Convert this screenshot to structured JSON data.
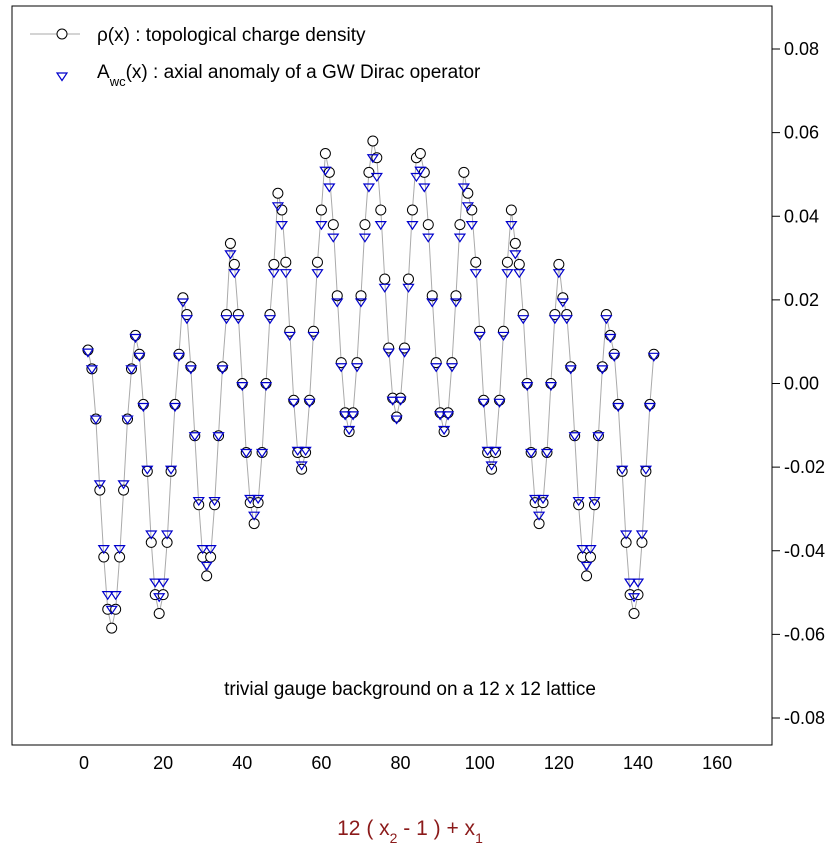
{
  "chart_data": {
    "type": "scatter",
    "title": "",
    "xlabel": {
      "parts": [
        {
          "text": "12 ( x",
          "sub": false
        },
        {
          "text": "2",
          "sub": true
        },
        {
          "text": " - 1 ) + x",
          "sub": false
        },
        {
          "text": "1",
          "sub": true
        }
      ],
      "color": "#8b1a1a"
    },
    "ylabel": "",
    "xlim": [
      -20,
      160
    ],
    "ylim": [
      -0.08,
      0.09
    ],
    "xticks": [
      0,
      20,
      40,
      60,
      80,
      100,
      120,
      140,
      160
    ],
    "yticks": [
      -0.08,
      -0.06,
      -0.04,
      -0.02,
      0.0,
      0.02,
      0.04,
      0.06,
      0.08
    ],
    "ytick_labels": [
      "-0.08",
      "-0.06",
      "-0.04",
      "-0.02",
      "0.00",
      "0.02",
      "0.04",
      "0.06",
      "0.08"
    ],
    "y_axis_side": "right",
    "grid": false,
    "legend_position": "top-left",
    "annotation": "trivial gauge background on a 12 x 12 lattice",
    "series": [
      {
        "label_parts": [
          {
            "text": "ρ(x) : topological charge density",
            "sub": false
          }
        ],
        "marker": "circle",
        "line": true,
        "color": "#000000",
        "line_color": "#aaaaaa",
        "values": [
          0.008,
          0.0035,
          -0.0085,
          -0.0255,
          -0.0415,
          -0.054,
          -0.0585,
          -0.054,
          -0.0415,
          -0.0255,
          -0.0085,
          0.0035,
          0.0115,
          0.007,
          -0.005,
          -0.021,
          -0.038,
          -0.0505,
          -0.055,
          -0.0505,
          -0.038,
          -0.021,
          -0.005,
          0.007,
          0.0205,
          0.0165,
          0.004,
          -0.0125,
          -0.029,
          -0.0415,
          -0.046,
          -0.0415,
          -0.029,
          -0.0125,
          0.004,
          0.0165,
          0.0335,
          0.0285,
          0.0165,
          0.0,
          -0.0165,
          -0.0285,
          -0.0335,
          -0.0285,
          -0.0165,
          0.0,
          0.0165,
          0.0285,
          0.0455,
          0.0415,
          0.029,
          0.0125,
          -0.004,
          -0.0165,
          -0.0205,
          -0.0165,
          -0.004,
          0.0125,
          0.029,
          0.0415,
          0.055,
          0.0505,
          0.038,
          0.021,
          0.005,
          -0.007,
          -0.0115,
          -0.007,
          0.005,
          0.021,
          0.038,
          0.0505,
          0.058,
          0.054,
          0.0415,
          0.025,
          0.0085,
          -0.0035,
          -0.008,
          -0.0035,
          0.0085,
          0.025,
          0.0415,
          0.054,
          0.055,
          0.0505,
          0.038,
          0.021,
          0.005,
          -0.007,
          -0.0115,
          -0.007,
          0.005,
          0.021,
          0.038,
          0.0505,
          0.0455,
          0.0415,
          0.029,
          0.0125,
          -0.004,
          -0.0165,
          -0.0205,
          -0.0165,
          -0.004,
          0.0125,
          0.029,
          0.0415,
          0.0335,
          0.0285,
          0.0165,
          0.0,
          -0.0165,
          -0.0285,
          -0.0335,
          -0.0285,
          -0.0165,
          0.0,
          0.0165,
          0.0285,
          0.0205,
          0.0165,
          0.004,
          -0.0125,
          -0.029,
          -0.0415,
          -0.046,
          -0.0415,
          -0.029,
          -0.0125,
          0.004,
          0.0165,
          0.0115,
          0.007,
          -0.005,
          -0.021,
          -0.038,
          -0.0505,
          -0.055,
          -0.0505,
          -0.038,
          -0.021,
          -0.005,
          0.007
        ]
      },
      {
        "label_parts": [
          {
            "text": "A",
            "sub": false
          },
          {
            "text": "wc",
            "sub": true
          },
          {
            "text": "(x) : axial anomaly of a GW Dirac operator",
            "sub": false
          }
        ],
        "marker": "triangle-down",
        "line": false,
        "color": "#0000cc",
        "values": [
          0.0075,
          0.0035,
          -0.0085,
          -0.024,
          -0.0395,
          -0.0505,
          -0.054,
          -0.0505,
          -0.0395,
          -0.024,
          -0.0085,
          0.0035,
          0.011,
          0.0065,
          -0.0055,
          -0.0205,
          -0.036,
          -0.0475,
          -0.051,
          -0.0475,
          -0.036,
          -0.0205,
          -0.0055,
          0.0065,
          0.0195,
          0.0155,
          0.0035,
          -0.0125,
          -0.028,
          -0.0395,
          -0.0435,
          -0.0395,
          -0.028,
          -0.0125,
          0.0035,
          0.0155,
          0.031,
          0.0265,
          0.0155,
          -0.0005,
          -0.0165,
          -0.0275,
          -0.0315,
          -0.0275,
          -0.0165,
          -0.0005,
          0.0155,
          0.0265,
          0.0425,
          0.038,
          0.0265,
          0.0115,
          -0.0045,
          -0.016,
          -0.0195,
          -0.016,
          -0.0045,
          0.0115,
          0.0265,
          0.038,
          0.051,
          0.047,
          0.035,
          0.0195,
          0.004,
          -0.0075,
          -0.011,
          -0.0075,
          0.004,
          0.0195,
          0.035,
          0.047,
          0.054,
          0.0495,
          0.038,
          0.023,
          0.0075,
          -0.004,
          -0.0085,
          -0.004,
          0.0075,
          0.023,
          0.038,
          0.0495,
          0.051,
          0.047,
          0.035,
          0.0195,
          0.004,
          -0.0075,
          -0.011,
          -0.0075,
          0.004,
          0.0195,
          0.035,
          0.047,
          0.0425,
          0.038,
          0.0265,
          0.0115,
          -0.0045,
          -0.016,
          -0.0195,
          -0.016,
          -0.0045,
          0.0115,
          0.0265,
          0.038,
          0.031,
          0.0265,
          0.0155,
          -0.0005,
          -0.0165,
          -0.0275,
          -0.0315,
          -0.0275,
          -0.0165,
          -0.0005,
          0.0155,
          0.0265,
          0.0195,
          0.0155,
          0.0035,
          -0.0125,
          -0.028,
          -0.0395,
          -0.0435,
          -0.0395,
          -0.028,
          -0.0125,
          0.0035,
          0.0155,
          0.011,
          0.0065,
          -0.0055,
          -0.0205,
          -0.036,
          -0.0475,
          -0.051,
          -0.0475,
          -0.036,
          -0.0205,
          -0.0055,
          0.0065
        ]
      }
    ]
  }
}
